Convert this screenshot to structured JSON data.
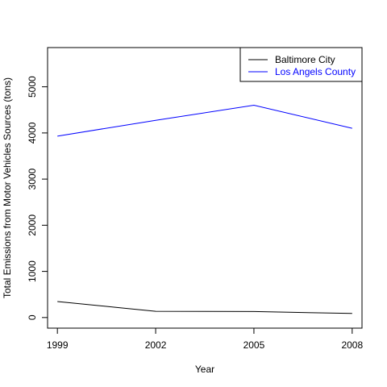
{
  "chart_data": {
    "type": "line",
    "title": "",
    "xlabel": "Year",
    "ylabel": "Total Emissions from Motor Vehicles Sources (tons)",
    "x": [
      1999,
      2002,
      2005,
      2008
    ],
    "x_ticks": [
      "1999",
      "2002",
      "2005",
      "2008"
    ],
    "y_ticks": [
      "0",
      "1000",
      "2000",
      "3000",
      "4000",
      "5000"
    ],
    "y_tick_values": [
      0,
      1000,
      2000,
      3000,
      4000,
      5000
    ],
    "xlim": [
      1998.7,
      2008.3
    ],
    "ylim": [
      -230,
      5850
    ],
    "grid": false,
    "legend_position": "top-right",
    "series": [
      {
        "name": "Baltimore City",
        "color": "#000000",
        "values": [
          347,
          134,
          130,
          88
        ]
      },
      {
        "name": "Los Angels County",
        "color": "#0000ff",
        "values": [
          3931,
          4274,
          4601,
          4101
        ]
      }
    ]
  }
}
